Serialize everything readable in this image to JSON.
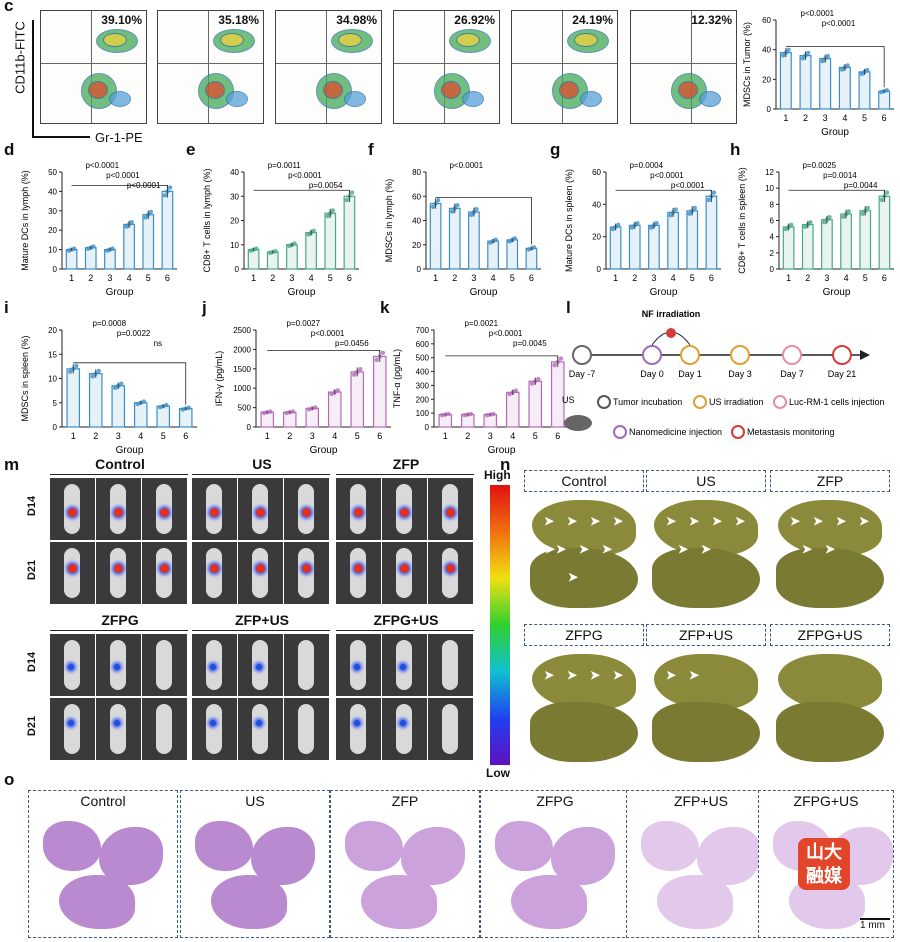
{
  "panel_labels": [
    "c",
    "d",
    "e",
    "f",
    "g",
    "h",
    "i",
    "j",
    "k",
    "l",
    "m",
    "n",
    "o"
  ],
  "c": {
    "yaxis": "CD11b-FITC",
    "xaxis": "Gr-1-PE",
    "percentages": [
      "39.10%",
      "35.18%",
      "34.98%",
      "26.92%",
      "24.19%",
      "12.32%"
    ],
    "bar_ylabel": "MDSCs in Tumor (%)",
    "sig": [
      "p<0.0001",
      "p<0.0001"
    ]
  },
  "group_label": "Group",
  "ticks6": [
    "1",
    "2",
    "3",
    "4",
    "5",
    "6"
  ],
  "chart_data": [
    {
      "panel": "c",
      "type": "bar",
      "categories": [
        "1",
        "2",
        "3",
        "4",
        "5",
        "6"
      ],
      "values": [
        38,
        36,
        34,
        28,
        25,
        12
      ],
      "ylim": [
        0,
        60
      ],
      "yticks": [
        0,
        20,
        40,
        60
      ],
      "ylabel": "MDSCs in Tumor (%)",
      "xlabel": "Group",
      "color": "#3b8fc7",
      "annotations": [
        "p<0.0001",
        "p<0.0001"
      ]
    },
    {
      "panel": "d",
      "type": "bar",
      "categories": [
        "1",
        "2",
        "3",
        "4",
        "5",
        "6"
      ],
      "values": [
        10,
        11,
        10,
        23,
        28,
        40
      ],
      "ylim": [
        0,
        50
      ],
      "yticks": [
        0,
        10,
        20,
        30,
        40,
        50
      ],
      "ylabel": "Mature DCs in lymph (%)",
      "xlabel": "Group",
      "color": "#3b8fc7",
      "annotations": [
        "p<0.0001",
        "p<0.0001",
        "p<0.0001"
      ]
    },
    {
      "panel": "e",
      "type": "bar",
      "categories": [
        "1",
        "2",
        "3",
        "4",
        "5",
        "6"
      ],
      "values": [
        8,
        7,
        10,
        15,
        23,
        30
      ],
      "ylim": [
        0,
        40
      ],
      "yticks": [
        0,
        10,
        20,
        30,
        40
      ],
      "ylabel": "CD8+ T cells in lymph (%)",
      "xlabel": "Group",
      "color": "#4aa88a",
      "annotations": [
        "p=0.0011",
        "p<0.0001",
        "p=0.0054"
      ]
    },
    {
      "panel": "f",
      "type": "bar",
      "categories": [
        "1",
        "2",
        "3",
        "4",
        "5",
        "6"
      ],
      "values": [
        54,
        50,
        47,
        23,
        24,
        17
      ],
      "ylim": [
        0,
        80
      ],
      "yticks": [
        0,
        20,
        40,
        60,
        80
      ],
      "ylabel": "MDSCs in lymph (%)",
      "xlabel": "Group",
      "color": "#3b8fc7",
      "annotations": [
        "p<0.0001"
      ]
    },
    {
      "panel": "g",
      "type": "bar",
      "categories": [
        "1",
        "2",
        "3",
        "4",
        "5",
        "6"
      ],
      "values": [
        26,
        27,
        27,
        35,
        36,
        45
      ],
      "ylim": [
        0,
        60
      ],
      "yticks": [
        0,
        20,
        40,
        60
      ],
      "ylabel": "Mature DCs in spleen (%)",
      "xlabel": "Group",
      "color": "#3b8fc7",
      "annotations": [
        "p=0.0004",
        "p<0.0001",
        "p<0.0001"
      ]
    },
    {
      "panel": "h",
      "type": "bar",
      "categories": [
        "1",
        "2",
        "3",
        "4",
        "5",
        "6"
      ],
      "values": [
        5.2,
        5.5,
        6.1,
        6.8,
        7.2,
        9
      ],
      "ylim": [
        0,
        12
      ],
      "yticks": [
        0,
        2,
        4,
        6,
        8,
        10,
        12
      ],
      "ylabel": "CD8+ T cells in spleen (%)",
      "xlabel": "Group",
      "color": "#4aa88a",
      "annotations": [
        "p=0.0025",
        "p=0.0014",
        "p=0.0044"
      ]
    },
    {
      "panel": "i",
      "type": "bar",
      "categories": [
        "1",
        "2",
        "3",
        "4",
        "5",
        "6"
      ],
      "values": [
        12,
        11,
        8.5,
        5,
        4.3,
        3.8
      ],
      "ylim": [
        0,
        20
      ],
      "yticks": [
        0,
        5,
        10,
        15,
        20
      ],
      "ylabel": "MDSCs in spleen (%)",
      "xlabel": "Group",
      "color": "#3b8fc7",
      "annotations": [
        "p=0.0008",
        "p=0.0022",
        "ns"
      ]
    },
    {
      "panel": "j",
      "type": "bar",
      "categories": [
        "1",
        "2",
        "3",
        "4",
        "5",
        "6"
      ],
      "values": [
        380,
        380,
        480,
        900,
        1420,
        1820
      ],
      "ylim": [
        0,
        2500
      ],
      "yticks": [
        0,
        500,
        1000,
        1500,
        2000,
        2500
      ],
      "ylabel": "IFN-γ (pg/mL)",
      "xlabel": "Group",
      "color": "#b36bb8",
      "annotations": [
        "p=0.0027",
        "p<0.0001",
        "p=0.0456"
      ]
    },
    {
      "panel": "k",
      "type": "bar",
      "categories": [
        "1",
        "2",
        "3",
        "4",
        "5",
        "6"
      ],
      "values": [
        90,
        90,
        90,
        250,
        330,
        470
      ],
      "ylim": [
        0,
        700
      ],
      "yticks": [
        0,
        100,
        200,
        300,
        400,
        500,
        600,
        700
      ],
      "ylabel": "TNF-α (pg/mL)",
      "xlabel": "Group",
      "color": "#b36bb8",
      "annotations": [
        "p=0.0021",
        "p<0.0001",
        "p=0.0045"
      ]
    }
  ],
  "l": {
    "days": [
      "Day -7",
      "Day 0",
      "Day 1",
      "Day 3",
      "Day 7",
      "Day 21"
    ],
    "top_label": "NF irradiation",
    "us_label": "US",
    "legend": [
      "Tumor incubation",
      "US irradiation",
      "Luc-RM-1 cells injection",
      "Nanomedicine injection",
      "Metastasis monitoring"
    ],
    "legend_colors": [
      "#555555",
      "#e0a030",
      "#e58fa0",
      "#9b6bc4",
      "#d63b3b"
    ]
  },
  "m": {
    "groups": [
      "Control",
      "US",
      "ZFP",
      "ZFPG",
      "ZFP+US",
      "ZFPG+US"
    ],
    "rows": [
      "D14",
      "D21"
    ],
    "scale_high": "High",
    "scale_low": "Low"
  },
  "n": {
    "groups": [
      "Control",
      "US",
      "ZFP",
      "ZFPG",
      "ZFP+US",
      "ZFPG+US"
    ]
  },
  "o": {
    "groups": [
      "Control",
      "US",
      "ZFP",
      "ZFPG",
      "ZFP+US",
      "ZFPG+US"
    ],
    "scale": "1 mm",
    "watermark": "山大融媒"
  }
}
